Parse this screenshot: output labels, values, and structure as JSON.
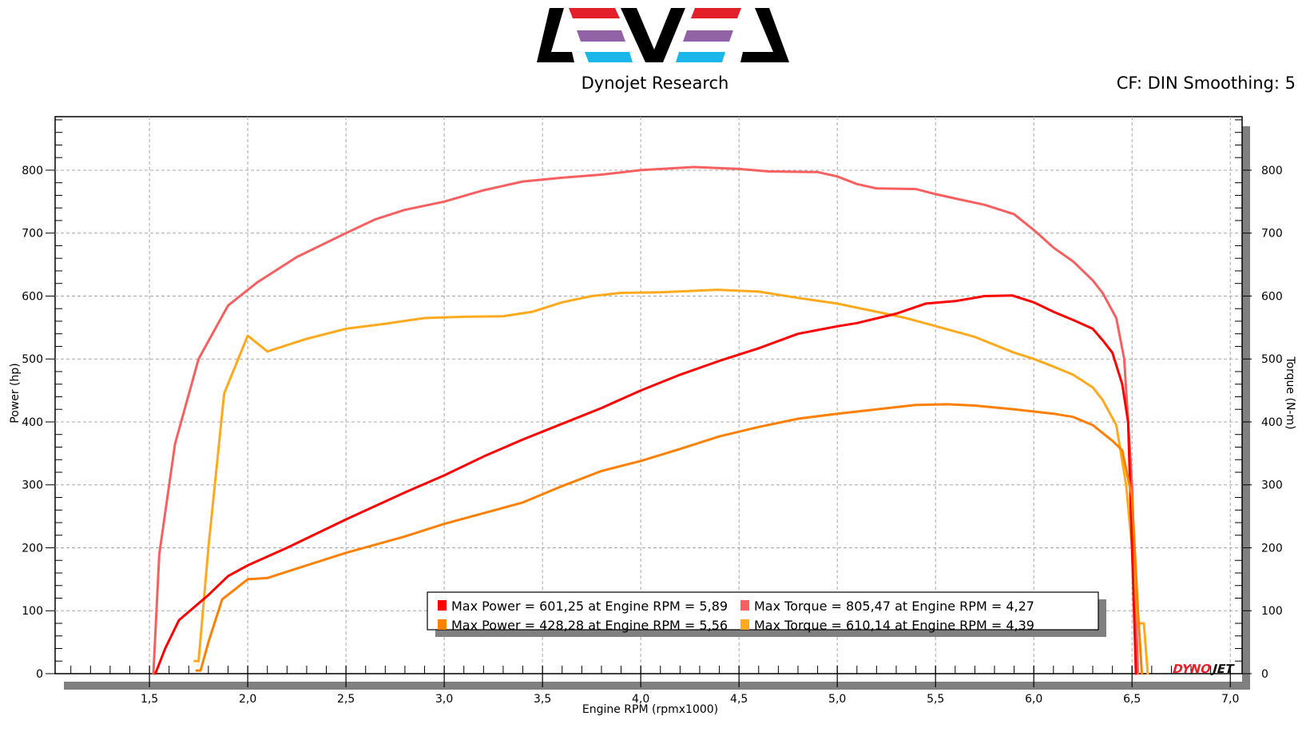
{
  "header": {
    "logo_text": "LEVEL",
    "subtitle": "Dynojet Research",
    "settings": "CF: DIN Smoothing: 5",
    "brand_mark": "DYNOJET"
  },
  "colors": {
    "power_run1": "#ff0000",
    "torque_run1": "#f76060",
    "power_run2": "#ff8000",
    "torque_run2": "#ffaa1e",
    "logo_red": "#e31f2a",
    "logo_purple": "#9163a6",
    "logo_cyan": "#1bb6ea"
  },
  "legend": [
    {
      "text": "Max Power = 601,25 at Engine RPM = 5,89",
      "color": "#ff0000"
    },
    {
      "text": "Max Torque = 805,47 at Engine RPM = 4,27",
      "color": "#f76060"
    },
    {
      "text": "Max Power = 428,28 at Engine RPM = 5,56",
      "color": "#ff8000"
    },
    {
      "text": "Max Torque = 610,14 at Engine RPM = 4,39",
      "color": "#ffaa1e"
    }
  ],
  "chart_data": {
    "type": "line",
    "title": "",
    "xlabel": "Engine RPM (rpmx1000)",
    "ylabel": "Power (hp)",
    "y2label": "Torque (N-m)",
    "xlim": [
      1.02,
      7.06
    ],
    "ylim": [
      0,
      885
    ],
    "xticks": [
      "1,5",
      "2,0",
      "2,5",
      "3,0",
      "3,5",
      "4,0",
      "4,5",
      "5,0",
      "5,5",
      "6,0",
      "6,5",
      "7,0"
    ],
    "xtick_values": [
      1.5,
      2.0,
      2.5,
      3.0,
      3.5,
      4.0,
      4.5,
      5.0,
      5.5,
      6.0,
      6.5,
      7.0
    ],
    "yticks": [
      "0",
      "100",
      "200",
      "300",
      "400",
      "500",
      "600",
      "700",
      "800"
    ],
    "ytick_values": [
      0,
      100,
      200,
      300,
      400,
      500,
      600,
      700,
      800
    ],
    "grid": true,
    "legend_position": "bottom-center",
    "series": [
      {
        "name": "Torque run 1",
        "color": "#f76060",
        "axis": "right",
        "x": [
          1.52,
          1.55,
          1.63,
          1.75,
          1.9,
          2.05,
          2.25,
          2.5,
          2.65,
          2.8,
          3.0,
          3.2,
          3.4,
          3.6,
          3.8,
          4.0,
          4.27,
          4.5,
          4.65,
          4.9,
          5.0,
          5.1,
          5.2,
          5.4,
          5.5,
          5.6,
          5.75,
          5.9,
          6.0,
          6.1,
          6.2,
          6.3,
          6.35,
          6.42,
          6.46,
          6.5,
          6.52,
          6.53
        ],
        "y": [
          0,
          190,
          365,
          500,
          585,
          622,
          662,
          700,
          722,
          737,
          750,
          768,
          782,
          788,
          793,
          800,
          805,
          802,
          798,
          797,
          790,
          778,
          771,
          770,
          762,
          755,
          745,
          730,
          705,
          677,
          655,
          625,
          605,
          565,
          500,
          300,
          100,
          0
        ]
      },
      {
        "name": "Torque run 2",
        "color": "#ffaa1e",
        "axis": "right",
        "x": [
          1.73,
          1.75,
          1.8,
          1.88,
          2.0,
          2.1,
          2.3,
          2.5,
          2.7,
          2.9,
          3.1,
          3.3,
          3.45,
          3.6,
          3.75,
          3.9,
          4.1,
          4.39,
          4.6,
          4.8,
          5.0,
          5.2,
          5.35,
          5.55,
          5.7,
          5.9,
          6.0,
          6.1,
          6.2,
          6.3,
          6.35,
          6.42,
          6.47,
          6.5,
          6.53,
          6.56,
          6.58
        ],
        "y": [
          20,
          20,
          200,
          445,
          537,
          512,
          532,
          548,
          556,
          565,
          567,
          568,
          575,
          590,
          600,
          605,
          606,
          610,
          607,
          597,
          588,
          575,
          565,
          548,
          535,
          510,
          500,
          488,
          475,
          455,
          435,
          395,
          300,
          200,
          80,
          80,
          0
        ]
      },
      {
        "name": "Power run 1",
        "color": "#ff0000",
        "axis": "left",
        "x": [
          1.53,
          1.58,
          1.65,
          1.8,
          1.9,
          2.0,
          2.2,
          2.5,
          2.8,
          3.0,
          3.2,
          3.4,
          3.6,
          3.8,
          4.0,
          4.2,
          4.4,
          4.6,
          4.8,
          5.0,
          5.1,
          5.3,
          5.45,
          5.6,
          5.75,
          5.89,
          6.0,
          6.1,
          6.2,
          6.3,
          6.35,
          6.4,
          6.45,
          6.48,
          6.5,
          6.52
        ],
        "y": [
          0,
          40,
          85,
          125,
          155,
          172,
          200,
          245,
          288,
          315,
          345,
          372,
          397,
          422,
          450,
          475,
          497,
          517,
          540,
          552,
          557,
          572,
          588,
          592,
          600,
          601,
          590,
          575,
          562,
          548,
          530,
          510,
          460,
          400,
          200,
          0
        ]
      },
      {
        "name": "Power run 2",
        "color": "#ff8000",
        "axis": "left",
        "x": [
          1.74,
          1.76,
          1.8,
          1.87,
          2.0,
          2.1,
          2.3,
          2.5,
          2.8,
          3.0,
          3.2,
          3.4,
          3.6,
          3.8,
          4.0,
          4.2,
          4.4,
          4.6,
          4.8,
          5.0,
          5.2,
          5.4,
          5.56,
          5.7,
          5.9,
          6.1,
          6.2,
          6.3,
          6.4,
          6.45,
          6.5,
          6.53,
          6.55
        ],
        "y": [
          5,
          5,
          50,
          118,
          150,
          152,
          172,
          192,
          218,
          238,
          255,
          272,
          298,
          322,
          338,
          357,
          377,
          392,
          405,
          413,
          420,
          427,
          428,
          426,
          420,
          413,
          408,
          395,
          370,
          355,
          280,
          100,
          0
        ]
      }
    ]
  }
}
